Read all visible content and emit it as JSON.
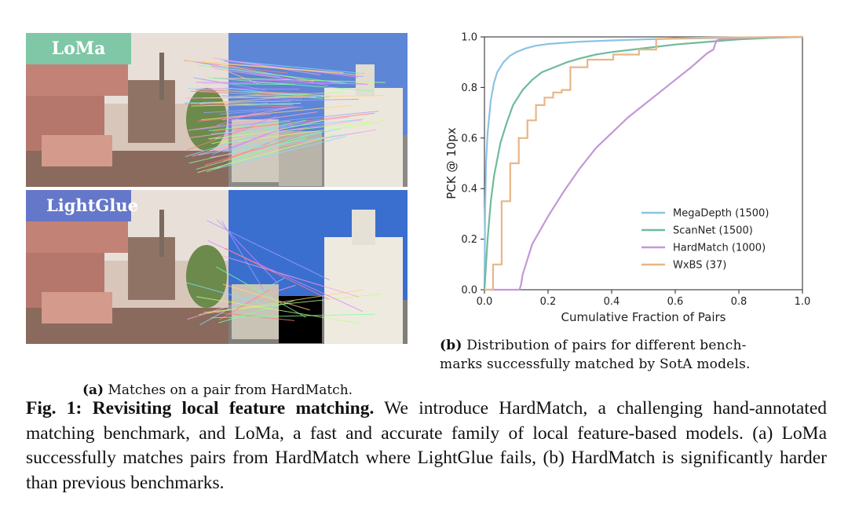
{
  "panel_a": {
    "tag_top": "LoMa",
    "tag_bottom": "LightGlue",
    "tag_top_color": "#7fc7a6",
    "tag_bottom_color": "#6577c8",
    "caption_label": "(a)",
    "caption_text": "Matches on a pair from HardMatch."
  },
  "panel_b": {
    "caption_label": "(b)",
    "caption_line1": "Distribution of pairs for different bench-",
    "caption_line2": "marks successfully matched by SotA models."
  },
  "figure": {
    "label": "Fig. 1:",
    "title": "Revisiting local feature matching.",
    "body": "We introduce HardMatch, a challenging hand-annotated matching benchmark, and LoMa, a fast and accurate family of local feature-based models. (a) LoMa successfully matches pairs from HardMatch where LightGlue fails, (b) HardMatch is significantly harder than previous benchmarks."
  },
  "chart_data": {
    "type": "line",
    "title": "",
    "xlabel": "Cumulative Fraction of Pairs",
    "ylabel": "PCK @ 10px",
    "xlim": [
      0,
      1
    ],
    "ylim": [
      0,
      1
    ],
    "xticks": [
      "0.0",
      "0.2",
      "0.4",
      "0.6",
      "0.8",
      "1.0"
    ],
    "yticks": [
      "0.0",
      "0.2",
      "0.4",
      "0.6",
      "0.8",
      "1.0"
    ],
    "legend_position": "lower-right",
    "series": [
      {
        "name": "MegaDepth (1500)",
        "color": "#8cc3e4",
        "x": [
          0,
          0.002,
          0.005,
          0.01,
          0.02,
          0.03,
          0.04,
          0.06,
          0.08,
          0.1,
          0.13,
          0.16,
          0.2,
          0.3,
          0.4,
          0.5,
          0.6,
          0.7,
          0.8,
          0.9,
          1.0
        ],
        "y": [
          0,
          0.3,
          0.5,
          0.62,
          0.75,
          0.82,
          0.86,
          0.9,
          0.925,
          0.94,
          0.955,
          0.965,
          0.972,
          0.981,
          0.986,
          0.99,
          0.993,
          0.995,
          0.997,
          0.999,
          1.0
        ]
      },
      {
        "name": "ScanNet (1500)",
        "color": "#6fbb9b",
        "x": [
          0,
          0.005,
          0.01,
          0.02,
          0.03,
          0.05,
          0.07,
          0.09,
          0.12,
          0.15,
          0.18,
          0.22,
          0.26,
          0.3,
          0.35,
          0.4,
          0.5,
          0.6,
          0.7,
          0.8,
          0.9,
          1.0
        ],
        "y": [
          0,
          0.1,
          0.2,
          0.35,
          0.45,
          0.58,
          0.66,
          0.73,
          0.79,
          0.83,
          0.86,
          0.88,
          0.9,
          0.915,
          0.93,
          0.94,
          0.955,
          0.97,
          0.98,
          0.99,
          0.996,
          1.0
        ]
      },
      {
        "name": "HardMatch (1000)",
        "color": "#c397d8",
        "x": [
          0,
          0.11,
          0.115,
          0.12,
          0.13,
          0.15,
          0.2,
          0.25,
          0.3,
          0.35,
          0.4,
          0.45,
          0.5,
          0.55,
          0.6,
          0.65,
          0.7,
          0.72,
          0.725,
          0.73,
          0.74,
          0.76,
          0.8,
          0.9,
          1.0
        ],
        "y": [
          0,
          0,
          0.02,
          0.06,
          0.1,
          0.18,
          0.29,
          0.39,
          0.48,
          0.56,
          0.62,
          0.68,
          0.73,
          0.78,
          0.83,
          0.88,
          0.935,
          0.95,
          0.97,
          0.985,
          0.99,
          0.993,
          0.996,
          0.999,
          1.0
        ]
      },
      {
        "name": "WxBS (37)",
        "color": "#e8b686",
        "x": [
          0,
          0.027,
          0.027,
          0.054,
          0.054,
          0.081,
          0.081,
          0.108,
          0.108,
          0.135,
          0.135,
          0.162,
          0.162,
          0.189,
          0.189,
          0.216,
          0.216,
          0.243,
          0.243,
          0.27,
          0.27,
          0.324,
          0.324,
          0.405,
          0.405,
          0.486,
          0.486,
          0.54,
          0.54,
          0.6,
          0.7,
          0.8,
          0.9,
          1.0
        ],
        "y": [
          0,
          0,
          0.1,
          0.1,
          0.35,
          0.35,
          0.5,
          0.5,
          0.6,
          0.6,
          0.67,
          0.67,
          0.73,
          0.73,
          0.76,
          0.76,
          0.78,
          0.78,
          0.79,
          0.79,
          0.88,
          0.88,
          0.91,
          0.91,
          0.93,
          0.93,
          0.95,
          0.95,
          0.99,
          0.995,
          0.997,
          0.998,
          0.999,
          1.0
        ]
      }
    ]
  }
}
